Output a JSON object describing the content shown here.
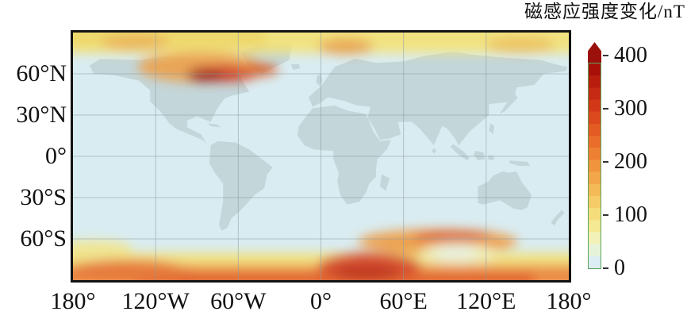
{
  "title": "磁感应强度变化/nT",
  "colors": {
    "ocean": "#d9ecf2",
    "land": "#c3d6da",
    "map_border": "#121212",
    "gridline": "#8d9aa0",
    "colorbar_border": "#5ba45b",
    "colorbar_arrow": "#9b100a",
    "text": "#111111"
  },
  "axes": {
    "lat_labels": [
      {
        "label": "60°N",
        "lat": 60
      },
      {
        "label": "30°N",
        "lat": 30
      },
      {
        "label": "0°",
        "lat": 0
      },
      {
        "label": "30°S",
        "lat": -30
      },
      {
        "label": "60°S",
        "lat": -60
      }
    ],
    "lon_labels": [
      {
        "label": "180°",
        "lon": -180
      },
      {
        "label": "120°W",
        "lon": -120
      },
      {
        "label": "60°W",
        "lon": -60
      },
      {
        "label": "0°",
        "lon": 0
      },
      {
        "label": "60°E",
        "lon": 60
      },
      {
        "label": "120°E",
        "lon": 120
      },
      {
        "label": "180°",
        "lon": 180
      }
    ]
  },
  "colorbar": {
    "unit": "nT",
    "min": 0,
    "max": 400,
    "ticks": [
      {
        "label": "400",
        "value": 400
      },
      {
        "label": "300",
        "value": 300
      },
      {
        "label": "200",
        "value": 200
      },
      {
        "label": "100",
        "value": 100
      },
      {
        "label": "0",
        "value": 0
      }
    ],
    "segments_top_to_bottom": [
      "#a81108",
      "#b81d0e",
      "#c62a14",
      "#d23818",
      "#dc491e",
      "#e45b24",
      "#ea6d2c",
      "#ee8034",
      "#f1943e",
      "#f3a74a",
      "#f5ba58",
      "#f6cc68",
      "#f6dd7c",
      "#f5e994",
      "#f2f1b8",
      "#e7f3d8",
      "#dcedf4"
    ]
  },
  "chart_data": {
    "type": "heatmap",
    "title": "磁感应强度变化/nT",
    "projection": "equirectangular world map",
    "x_range_lon": [
      -180,
      180
    ],
    "y_range_lat": [
      -90,
      90
    ],
    "xticks": [
      "180°",
      "120°W",
      "60°W",
      "0°",
      "60°E",
      "120°E",
      "180°"
    ],
    "yticks": [
      "60°N",
      "30°N",
      "0°",
      "30°S",
      "60°S"
    ],
    "grid_lons": [
      -120,
      -60,
      0,
      60,
      120
    ],
    "grid_lats": [
      60,
      30,
      0,
      -30,
      -60
    ],
    "colorbar": {
      "min": 0,
      "max": 400,
      "unit": "nT",
      "ticks": [
        0,
        100,
        200,
        300,
        400
      ]
    },
    "legend_position": "right",
    "grid": "on",
    "estimated_grid": {
      "lats": [
        90,
        60,
        30,
        0,
        -30,
        -60,
        -90
      ],
      "lons": [
        -180,
        -120,
        -60,
        0,
        60,
        120,
        180
      ],
      "values_nT": [
        [
          170,
          190,
          170,
          150,
          130,
          120,
          140
        ],
        [
          90,
          210,
          390,
          170,
          110,
          60,
          80
        ],
        [
          40,
          50,
          60,
          40,
          30,
          30,
          40
        ],
        [
          30,
          30,
          40,
          30,
          30,
          30,
          30
        ],
        [
          40,
          30,
          30,
          40,
          40,
          40,
          40
        ],
        [
          110,
          90,
          70,
          140,
          290,
          310,
          150
        ],
        [
          280,
          250,
          260,
          320,
          400,
          280,
          300
        ]
      ]
    },
    "features": [
      {
        "name": "arctic-yellow-band",
        "type": "band",
        "lon": [
          -190,
          190
        ],
        "lat": [
          75,
          97
        ],
        "color": "#f4e274",
        "est_peak_nT": 150
      },
      {
        "name": "arctic-west-band",
        "type": "band",
        "lon": [
          -190,
          -40
        ],
        "lat": [
          79,
          97
        ],
        "color": "#f1d75f",
        "est_peak_nT": 180
      },
      {
        "name": "antarctic-yellow-band",
        "type": "band",
        "lon": [
          -190,
          190
        ],
        "lat": [
          -97,
          -70
        ],
        "color": "#f4e274",
        "est_peak_nT": 150
      },
      {
        "name": "antarctic-orange-band",
        "type": "band",
        "lon": [
          -190,
          190
        ],
        "lat": [
          -97,
          -79
        ],
        "color": "#ee8434",
        "est_peak_nT": 250
      },
      {
        "name": "antarctic-deep-band",
        "type": "band",
        "lon": [
          -135,
          155
        ],
        "lat": [
          -97,
          -85
        ],
        "color": "#e2581f",
        "est_peak_nT": 300
      },
      {
        "name": "west-antarctic-rise",
        "type": "spot",
        "c": [
          -165,
          -67
        ],
        "r": [
          28,
          6
        ],
        "color": "#f2e58a",
        "est_peak_nT": 150
      },
      {
        "name": "left-south-orange",
        "type": "spot",
        "c": [
          -140,
          -83
        ],
        "r": [
          45,
          8
        ],
        "color": "#e8702a",
        "est_peak_nT": 300
      },
      {
        "name": "north-america-orange",
        "type": "spot",
        "c": [
          -88,
          65
        ],
        "r": [
          45,
          11
        ],
        "color": "#eda04a",
        "est_peak_nT": 250
      },
      {
        "name": "nw-arctic-orange",
        "type": "spot",
        "c": [
          -135,
          83
        ],
        "r": [
          25,
          6
        ],
        "color": "#eeb24e",
        "est_peak_nT": 220
      },
      {
        "name": "scandinavia-orange",
        "type": "spot",
        "c": [
          18,
          80
        ],
        "r": [
          20,
          6
        ],
        "color": "#eca242",
        "est_peak_nT": 230
      },
      {
        "name": "east-siberia-yellow",
        "type": "spot",
        "c": [
          145,
          81
        ],
        "r": [
          25,
          6
        ],
        "color": "#f0c052",
        "est_peak_nT": 200
      },
      {
        "name": "south-arc-orange",
        "type": "spot",
        "c": [
          85,
          -62
        ],
        "r": [
          58,
          9
        ],
        "color": "#ef9a40",
        "est_peak_nT": 280
      },
      {
        "name": "south-arc-red",
        "type": "spot",
        "c": [
          95,
          -58.5
        ],
        "r": [
          28,
          4.2
        ],
        "color": "#dc5520",
        "est_peak_nT": 320
      },
      {
        "name": "south-red-blob",
        "type": "spot",
        "c": [
          35,
          -80
        ],
        "r": [
          38,
          10
        ],
        "color": "#d8431a",
        "est_peak_nT": 350
      },
      {
        "name": "pale-pocket-halo",
        "type": "spot",
        "c": [
          100,
          -71
        ],
        "r": [
          28,
          8
        ],
        "color": "#f2ecb0",
        "est_peak_nT": 120
      },
      {
        "name": "pale-pocket",
        "type": "spot",
        "c": [
          98,
          -70
        ],
        "r": [
          16,
          5
        ],
        "color": "#e9f1dc",
        "est_peak_nT": 60
      },
      {
        "name": "south-red-core",
        "type": "spot",
        "c": [
          33,
          -84.5
        ],
        "r": [
          24,
          6
        ],
        "color": "#c02711",
        "est_peak_nT": 400
      },
      {
        "name": "hudson-red-arc",
        "type": "spot",
        "c": [
          -70,
          60.5
        ],
        "r": [
          26,
          6
        ],
        "color": "#d23414",
        "est_peak_nT": 350
      },
      {
        "name": "greenland-red-tail",
        "type": "spot",
        "c": [
          -45,
          63
        ],
        "r": [
          14,
          4.5
        ],
        "color": "#dd5b22",
        "est_peak_nT": 300
      },
      {
        "name": "hudson-red-core",
        "type": "spot",
        "c": [
          -84,
          58.5
        ],
        "r": [
          14,
          4.2
        ],
        "color": "#9e0e07",
        "est_peak_nT": 400
      }
    ]
  }
}
